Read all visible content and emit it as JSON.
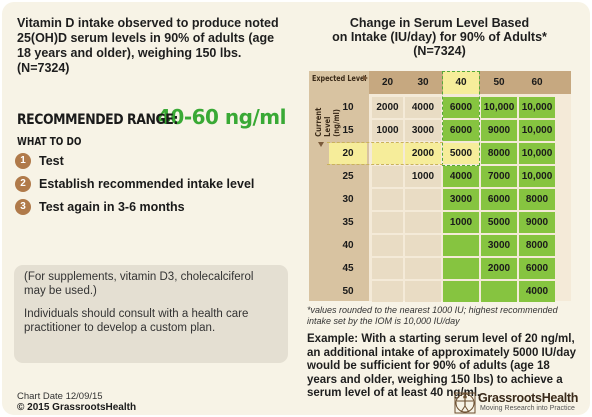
{
  "intro_text": "Vitamin D intake observed to produce noted 25(OH)D serum levels in 90% of adults (age 18 years and older), weighing 150 lbs.  (N=7324)",
  "recommended": {
    "label": "RECOMMENDED RANGE:",
    "value": "40-60 ng/ml"
  },
  "what_to_do": {
    "heading": "WHAT TO DO",
    "steps": [
      {
        "num": "1",
        "text": "Test"
      },
      {
        "num": "2",
        "text": "Establish recommended intake level"
      },
      {
        "num": "3",
        "text": "Test again in 3-6 months"
      }
    ]
  },
  "note": {
    "supplement": "(For supplements, vitamin D3, cholecalciferol may be used.)",
    "consult": "Individuals should consult with a health care practitioner to develop a custom plan."
  },
  "footer": {
    "chart_date": "Chart Date 12/09/15",
    "copyright": "© 2015 GrassrootsHealth"
  },
  "chart_title": {
    "line1": "Change in Serum Level Based",
    "line2": "on Intake (IU/day) for 90% of Adults*",
    "line3": "(N=7324)"
  },
  "table": {
    "expected_label": "Expected Level",
    "current_label": "Current Level (ng/ml)",
    "expected_levels": [
      "20",
      "30",
      "40",
      "50",
      "60"
    ],
    "rows": [
      {
        "current": "10",
        "values": [
          "2000",
          "4000",
          "6000",
          "10,000",
          "10,000"
        ]
      },
      {
        "current": "15",
        "values": [
          "1000",
          "3000",
          "6000",
          "9000",
          "10,000"
        ]
      },
      {
        "current": "20",
        "values": [
          "",
          "2000",
          "5000",
          "8000",
          "10,000"
        ]
      },
      {
        "current": "25",
        "values": [
          "",
          "1000",
          "4000",
          "7000",
          "10,000"
        ]
      },
      {
        "current": "30",
        "values": [
          "",
          "",
          "3000",
          "6000",
          "8000"
        ]
      },
      {
        "current": "35",
        "values": [
          "",
          "",
          "1000",
          "5000",
          "9000"
        ]
      },
      {
        "current": "40",
        "values": [
          "",
          "",
          "",
          "3000",
          "8000"
        ]
      },
      {
        "current": "45",
        "values": [
          "",
          "",
          "",
          "2000",
          "6000"
        ]
      },
      {
        "current": "50",
        "values": [
          "",
          "",
          "",
          "",
          "4000"
        ]
      }
    ]
  },
  "footnote": "*values rounded to the nearest 1000 IU; highest recommended intake set by the IOM is 10,000 IU/day",
  "example": "Example: With a starting serum level of 20 ng/ml, an additional intake of approximately 5000 IU/day would be sufficient for 90% of adults (age 18 years and older, weighing 150 lbs) to achieve a serum level of at least 40 ng/ml.",
  "logo": {
    "icon": "vitruvian-man-icon",
    "name": "GrassrootsHealth",
    "tagline": "Moving Research into Practice"
  },
  "colors": {
    "green": "#86c440",
    "accent_green": "#39a935",
    "brown": "#b07a4a",
    "header": "#c6a880"
  }
}
